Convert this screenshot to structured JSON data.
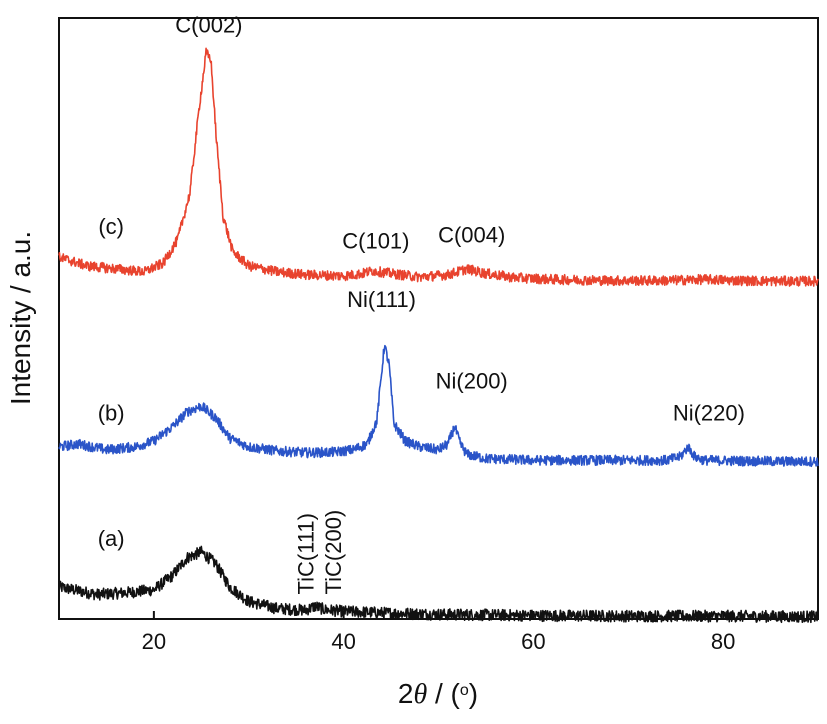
{
  "chart_data": {
    "type": "line",
    "xlabel_prefix": "2",
    "xlabel_symbol": "θ",
    "xlabel_unit_open": " / (",
    "xlabel_unit_symbol": "o",
    "xlabel_unit_close": ")",
    "ylabel": "Intensity / a.u.",
    "xlim": [
      10,
      90
    ],
    "ylim": [
      0,
      10.3
    ],
    "xticks": [
      20,
      40,
      60,
      80
    ],
    "xtick_labels": [
      "20",
      "40",
      "60",
      "80"
    ],
    "yticks_shown": false,
    "grid": false,
    "series": [
      {
        "name": "(a)",
        "color": "#111111",
        "points": [
          [
            10,
            0.55
          ],
          [
            14,
            0.42
          ],
          [
            17,
            0.45
          ],
          [
            20,
            0.5
          ],
          [
            22,
            0.75
          ],
          [
            23.5,
            1.05
          ],
          [
            25,
            1.15
          ],
          [
            26.5,
            0.95
          ],
          [
            28,
            0.55
          ],
          [
            30,
            0.3
          ],
          [
            33,
            0.18
          ],
          [
            36,
            0.15
          ],
          [
            37,
            0.22
          ],
          [
            38,
            0.16
          ],
          [
            40,
            0.13
          ],
          [
            45,
            0.1
          ],
          [
            50,
            0.08
          ],
          [
            60,
            0.06
          ],
          [
            70,
            0.05
          ],
          [
            80,
            0.05
          ],
          [
            90,
            0.04
          ]
        ]
      },
      {
        "name": "(b)",
        "color": "#2a54c8",
        "points": [
          [
            10,
            2.95
          ],
          [
            12,
            3.0
          ],
          [
            15,
            2.9
          ],
          [
            18,
            2.95
          ],
          [
            20,
            3.05
          ],
          [
            22,
            3.3
          ],
          [
            23.5,
            3.55
          ],
          [
            25,
            3.65
          ],
          [
            26.5,
            3.45
          ],
          [
            28,
            3.1
          ],
          [
            30,
            2.95
          ],
          [
            33,
            2.88
          ],
          [
            36,
            2.85
          ],
          [
            39,
            2.86
          ],
          [
            41,
            2.9
          ],
          [
            42.5,
            3.0
          ],
          [
            43.5,
            3.4
          ],
          [
            44.3,
            4.7
          ],
          [
            44.8,
            4.35
          ],
          [
            45.3,
            3.35
          ],
          [
            46.5,
            3.05
          ],
          [
            48,
            2.95
          ],
          [
            50,
            2.9
          ],
          [
            51,
            3.0
          ],
          [
            51.7,
            3.3
          ],
          [
            52.3,
            3.0
          ],
          [
            53,
            2.82
          ],
          [
            55,
            2.75
          ],
          [
            60,
            2.72
          ],
          [
            65,
            2.72
          ],
          [
            70,
            2.72
          ],
          [
            74,
            2.72
          ],
          [
            75.5,
            2.78
          ],
          [
            76.3,
            2.95
          ],
          [
            77,
            2.78
          ],
          [
            78,
            2.72
          ],
          [
            82,
            2.71
          ],
          [
            86,
            2.7
          ],
          [
            90,
            2.7
          ]
        ]
      },
      {
        "name": "(c)",
        "color": "#e8432e",
        "points": [
          [
            10,
            6.2
          ],
          [
            13,
            6.05
          ],
          [
            16,
            6.0
          ],
          [
            19,
            5.95
          ],
          [
            21,
            6.1
          ],
          [
            22.5,
            6.5
          ],
          [
            23.8,
            7.3
          ],
          [
            24.8,
            8.8
          ],
          [
            25.5,
            9.7
          ],
          [
            26,
            9.6
          ],
          [
            26.6,
            8.2
          ],
          [
            27.3,
            6.9
          ],
          [
            28.3,
            6.3
          ],
          [
            30,
            6.05
          ],
          [
            33,
            5.95
          ],
          [
            36,
            5.9
          ],
          [
            40,
            5.88
          ],
          [
            42,
            5.92
          ],
          [
            43,
            5.97
          ],
          [
            45,
            5.92
          ],
          [
            48,
            5.86
          ],
          [
            51,
            5.9
          ],
          [
            53,
            6.0
          ],
          [
            55,
            5.92
          ],
          [
            58,
            5.85
          ],
          [
            62,
            5.82
          ],
          [
            68,
            5.8
          ],
          [
            74,
            5.8
          ],
          [
            78,
            5.82
          ],
          [
            82,
            5.8
          ],
          [
            86,
            5.79
          ],
          [
            90,
            5.79
          ]
        ]
      }
    ],
    "annotations": [
      {
        "id": "c002",
        "text": "C(002)",
        "x": 25.8,
        "y": 10.05
      },
      {
        "id": "c101",
        "text": "C(101)",
        "x": 43.4,
        "y": 6.35
      },
      {
        "id": "c004",
        "text": "C(004)",
        "x": 53.5,
        "y": 6.45
      },
      {
        "id": "ni111",
        "text": "Ni(111)",
        "x": 44.0,
        "y": 5.35
      },
      {
        "id": "ni200",
        "text": "Ni(200)",
        "x": 53.5,
        "y": 3.95
      },
      {
        "id": "ni220",
        "text": "Ni(220)",
        "x": 78.5,
        "y": 3.4
      },
      {
        "id": "tic111",
        "text": "TiC(111)",
        "x": 36.8,
        "y": 0.42,
        "rotate": true
      },
      {
        "id": "tic200",
        "text": "TiC(200)",
        "x": 39.7,
        "y": 0.42,
        "rotate": true
      }
    ],
    "series_labels": [
      {
        "id": "a",
        "text": "(a)",
        "x": 15.5,
        "y": 1.25
      },
      {
        "id": "b",
        "text": "(b)",
        "x": 15.5,
        "y": 3.4
      },
      {
        "id": "c",
        "text": "(c)",
        "x": 15.5,
        "y": 6.6
      }
    ]
  }
}
